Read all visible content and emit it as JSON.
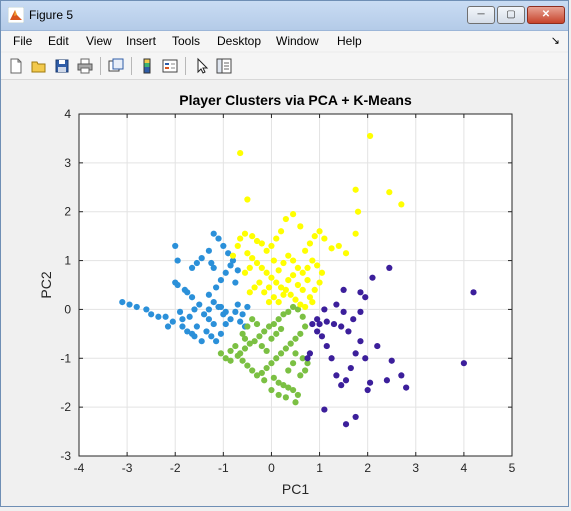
{
  "window": {
    "title": "Figure 5"
  },
  "menu": {
    "items": [
      "File",
      "Edit",
      "View",
      "Insert",
      "Tools",
      "Desktop",
      "Window",
      "Help"
    ]
  },
  "toolbar": {
    "icons": [
      "new-figure-icon",
      "open-file-icon",
      "save-icon",
      "print-icon",
      "link-plot-icon",
      "colorbar-icon",
      "legend-icon",
      "pointer-icon",
      "property-editor-icon"
    ]
  },
  "colors": {
    "cluster1": "#2b90d9",
    "cluster2": "#7bc043",
    "cluster3": "#ffff00",
    "cluster4": "#3c1f9b"
  },
  "chart_data": {
    "type": "scatter",
    "title": "Player Clusters via PCA + K-Means",
    "xlabel": "PC1",
    "ylabel": "PC2",
    "xlim": [
      -4,
      5
    ],
    "ylim": [
      -3,
      4
    ],
    "xticks": [
      -4,
      -3,
      -2,
      -1,
      0,
      1,
      2,
      3,
      4,
      5
    ],
    "yticks": [
      -3,
      -2,
      -1,
      0,
      1,
      2,
      3,
      4
    ],
    "grid": true,
    "series": [
      {
        "color": "#2b90d9",
        "points": [
          [
            -3.1,
            0.15
          ],
          [
            -2.95,
            0.1
          ],
          [
            -2.8,
            0.05
          ],
          [
            -2.6,
            0.0
          ],
          [
            -2.5,
            -0.1
          ],
          [
            -2.35,
            -0.15
          ],
          [
            -2.2,
            -0.15
          ],
          [
            -2.05,
            -0.25
          ],
          [
            -2.15,
            -0.35
          ],
          [
            -1.85,
            -0.35
          ],
          [
            -1.75,
            -0.45
          ],
          [
            -1.65,
            -0.5
          ],
          [
            -1.6,
            -0.55
          ],
          [
            -1.45,
            -0.65
          ],
          [
            -1.55,
            -0.35
          ],
          [
            -1.35,
            -0.45
          ],
          [
            -1.25,
            -0.55
          ],
          [
            -1.15,
            -0.65
          ],
          [
            -1.05,
            -0.5
          ],
          [
            -0.95,
            -0.3
          ],
          [
            -0.85,
            -0.2
          ],
          [
            -0.75,
            -0.05
          ],
          [
            -0.7,
            0.1
          ],
          [
            -0.65,
            -0.25
          ],
          [
            -0.55,
            -0.35
          ],
          [
            -1.0,
            -0.1
          ],
          [
            -1.1,
            0.05
          ],
          [
            -1.2,
            0.15
          ],
          [
            -1.3,
            0.0
          ],
          [
            -1.4,
            -0.1
          ],
          [
            -1.5,
            0.1
          ],
          [
            -1.65,
            0.25
          ],
          [
            -1.75,
            0.35
          ],
          [
            -1.8,
            0.4
          ],
          [
            -1.95,
            0.5
          ],
          [
            -2.0,
            0.55
          ],
          [
            -1.6,
            0.0
          ],
          [
            -1.7,
            -0.15
          ],
          [
            -1.85,
            -0.2
          ],
          [
            -1.9,
            -0.05
          ],
          [
            -1.3,
            0.3
          ],
          [
            -1.15,
            0.45
          ],
          [
            -1.05,
            0.6
          ],
          [
            -0.95,
            0.75
          ],
          [
            -0.85,
            0.9
          ],
          [
            -0.75,
            0.55
          ],
          [
            -0.7,
            0.8
          ],
          [
            -0.8,
            1.0
          ],
          [
            -0.9,
            1.15
          ],
          [
            -1.0,
            1.3
          ],
          [
            -1.1,
            1.45
          ],
          [
            -1.2,
            1.55
          ],
          [
            -1.3,
            1.2
          ],
          [
            -1.25,
            0.95
          ],
          [
            -1.2,
            0.85
          ],
          [
            -1.55,
            0.95
          ],
          [
            -1.45,
            1.05
          ],
          [
            -1.65,
            0.85
          ],
          [
            -1.95,
            1.0
          ],
          [
            -2.0,
            1.3
          ],
          [
            -1.05,
            0.05
          ],
          [
            -0.95,
            -0.05
          ],
          [
            -1.2,
            -0.3
          ],
          [
            -1.3,
            -0.2
          ],
          [
            -0.6,
            -0.1
          ],
          [
            -0.5,
            0.05
          ]
        ]
      },
      {
        "color": "#7bc043",
        "points": [
          [
            -1.05,
            -0.9
          ],
          [
            -0.95,
            -1.0
          ],
          [
            -0.85,
            -0.85
          ],
          [
            -0.75,
            -0.75
          ],
          [
            -0.65,
            -0.9
          ],
          [
            -0.55,
            -0.8
          ],
          [
            -0.45,
            -0.7
          ],
          [
            -0.35,
            -0.65
          ],
          [
            -0.25,
            -0.55
          ],
          [
            -0.15,
            -0.45
          ],
          [
            -0.05,
            -0.35
          ],
          [
            0.05,
            -0.3
          ],
          [
            0.15,
            -0.2
          ],
          [
            0.25,
            -0.1
          ],
          [
            0.35,
            -0.05
          ],
          [
            0.45,
            0.05
          ],
          [
            0.55,
            0.0
          ],
          [
            0.65,
            -0.15
          ],
          [
            0.7,
            -0.35
          ],
          [
            0.6,
            -0.5
          ],
          [
            0.5,
            -0.6
          ],
          [
            0.4,
            -0.7
          ],
          [
            0.3,
            -0.8
          ],
          [
            0.2,
            -0.9
          ],
          [
            0.1,
            -1.0
          ],
          [
            0.0,
            -1.1
          ],
          [
            -0.1,
            -1.2
          ],
          [
            -0.2,
            -1.3
          ],
          [
            -0.3,
            -1.35
          ],
          [
            -0.4,
            -1.25
          ],
          [
            -0.5,
            -1.15
          ],
          [
            -0.6,
            -1.05
          ],
          [
            -0.7,
            -0.95
          ],
          [
            0.05,
            -1.4
          ],
          [
            0.15,
            -1.5
          ],
          [
            0.25,
            -1.55
          ],
          [
            0.35,
            -1.6
          ],
          [
            0.45,
            -1.65
          ],
          [
            0.55,
            -1.75
          ],
          [
            0.5,
            -1.9
          ],
          [
            0.3,
            -1.8
          ],
          [
            0.15,
            -1.75
          ],
          [
            0.0,
            -1.65
          ],
          [
            -0.15,
            -1.45
          ],
          [
            0.6,
            -1.35
          ],
          [
            0.7,
            -1.25
          ],
          [
            0.75,
            -1.1
          ],
          [
            0.65,
            -1.0
          ],
          [
            0.5,
            -0.9
          ],
          [
            0.45,
            -1.1
          ],
          [
            0.35,
            -1.25
          ],
          [
            -0.3,
            -0.3
          ],
          [
            -0.4,
            -0.2
          ],
          [
            -0.5,
            -0.35
          ],
          [
            -0.6,
            -0.5
          ],
          [
            -0.2,
            -0.75
          ],
          [
            -0.1,
            -0.85
          ],
          [
            0.0,
            -0.6
          ],
          [
            0.1,
            -0.5
          ],
          [
            0.2,
            -0.4
          ],
          [
            -0.55,
            -0.6
          ],
          [
            -0.85,
            -1.05
          ]
        ]
      },
      {
        "color": "#ffff00",
        "points": [
          [
            -0.65,
            3.2
          ],
          [
            -0.5,
            2.25
          ],
          [
            1.75,
            2.45
          ],
          [
            2.05,
            3.55
          ],
          [
            2.45,
            2.4
          ],
          [
            2.7,
            2.15
          ],
          [
            1.8,
            2.0
          ],
          [
            1.75,
            1.55
          ],
          [
            1.4,
            1.3
          ],
          [
            1.55,
            1.15
          ],
          [
            1.25,
            1.25
          ],
          [
            1.1,
            1.45
          ],
          [
            1.0,
            1.6
          ],
          [
            0.9,
            1.5
          ],
          [
            0.8,
            1.35
          ],
          [
            0.7,
            1.2
          ],
          [
            0.6,
            1.7
          ],
          [
            0.45,
            1.95
          ],
          [
            0.3,
            1.85
          ],
          [
            0.2,
            1.6
          ],
          [
            0.1,
            1.45
          ],
          [
            0.0,
            1.3
          ],
          [
            -0.1,
            1.2
          ],
          [
            -0.2,
            1.35
          ],
          [
            -0.3,
            1.4
          ],
          [
            -0.4,
            1.5
          ],
          [
            -0.55,
            1.55
          ],
          [
            -0.65,
            1.45
          ],
          [
            -0.7,
            1.3
          ],
          [
            -0.8,
            1.1
          ],
          [
            -0.5,
            1.15
          ],
          [
            -0.4,
            1.05
          ],
          [
            -0.3,
            0.95
          ],
          [
            -0.2,
            0.85
          ],
          [
            -0.1,
            0.75
          ],
          [
            0.0,
            0.65
          ],
          [
            0.1,
            0.55
          ],
          [
            0.2,
            0.45
          ],
          [
            0.3,
            0.4
          ],
          [
            0.4,
            0.3
          ],
          [
            0.5,
            0.2
          ],
          [
            0.6,
            0.1
          ],
          [
            0.7,
            0.05
          ],
          [
            0.8,
            0.25
          ],
          [
            0.9,
            0.4
          ],
          [
            1.0,
            0.55
          ],
          [
            1.05,
            0.75
          ],
          [
            0.95,
            0.9
          ],
          [
            0.85,
            1.0
          ],
          [
            0.75,
            0.85
          ],
          [
            0.65,
            0.75
          ],
          [
            0.55,
            0.85
          ],
          [
            0.45,
            1.0
          ],
          [
            0.35,
            1.1
          ],
          [
            0.25,
            0.95
          ],
          [
            0.15,
            0.8
          ],
          [
            -0.25,
            0.55
          ],
          [
            -0.35,
            0.45
          ],
          [
            -0.45,
            0.35
          ],
          [
            -0.15,
            0.35
          ],
          [
            -0.05,
            0.45
          ],
          [
            0.05,
            0.25
          ],
          [
            0.15,
            0.15
          ],
          [
            0.25,
            0.3
          ],
          [
            0.35,
            0.6
          ],
          [
            0.45,
            0.7
          ],
          [
            0.55,
            0.5
          ],
          [
            0.65,
            0.4
          ],
          [
            0.75,
            0.6
          ],
          [
            -0.45,
            0.85
          ],
          [
            -0.55,
            0.75
          ],
          [
            0.85,
            0.15
          ],
          [
            -0.05,
            0.15
          ],
          [
            0.05,
            1.0
          ]
        ]
      },
      {
        "color": "#3c1f9b",
        "points": [
          [
            4.2,
            0.35
          ],
          [
            4.0,
            -1.1
          ],
          [
            2.8,
            -1.6
          ],
          [
            2.7,
            -1.35
          ],
          [
            2.5,
            -1.05
          ],
          [
            2.4,
            -1.45
          ],
          [
            2.2,
            -0.75
          ],
          [
            2.05,
            -1.5
          ],
          [
            1.95,
            -1.0
          ],
          [
            1.85,
            -0.65
          ],
          [
            1.75,
            -0.9
          ],
          [
            1.65,
            -1.2
          ],
          [
            1.55,
            -1.45
          ],
          [
            1.45,
            -1.55
          ],
          [
            1.35,
            -1.35
          ],
          [
            1.25,
            -1.0
          ],
          [
            1.15,
            -0.75
          ],
          [
            1.05,
            -0.55
          ],
          [
            0.95,
            -0.45
          ],
          [
            1.0,
            -0.3
          ],
          [
            1.15,
            -0.25
          ],
          [
            1.3,
            -0.3
          ],
          [
            1.45,
            -0.35
          ],
          [
            1.6,
            -0.45
          ],
          [
            1.7,
            -0.2
          ],
          [
            1.85,
            -0.05
          ],
          [
            1.95,
            0.25
          ],
          [
            2.1,
            0.65
          ],
          [
            2.45,
            0.85
          ],
          [
            1.85,
            0.35
          ],
          [
            1.5,
            0.4
          ],
          [
            1.35,
            0.1
          ],
          [
            1.1,
            0.0
          ],
          [
            0.95,
            -0.2
          ],
          [
            0.85,
            -0.3
          ],
          [
            1.55,
            -2.35
          ],
          [
            1.75,
            -2.2
          ],
          [
            1.1,
            -2.05
          ],
          [
            2.0,
            -1.65
          ],
          [
            1.5,
            -0.05
          ],
          [
            0.8,
            -0.9
          ],
          [
            0.75,
            -1.0
          ]
        ]
      }
    ]
  }
}
